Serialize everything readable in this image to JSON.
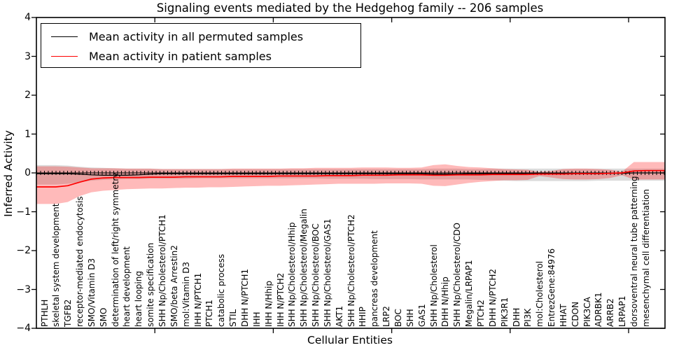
{
  "title": "Signaling events mediated by the Hedgehog family -- 206 samples",
  "chart_data": {
    "type": "line",
    "title": "Signaling events mediated by the Hedgehog family -- 206 samples",
    "xlabel": "Cellular Entities",
    "ylabel": "Inferred Activity",
    "ylim": [
      -4,
      4
    ],
    "ytick_labels": [
      "4",
      "3",
      "2",
      "1",
      "0",
      "−1",
      "−2",
      "−3",
      "−4"
    ],
    "ytick_values": [
      4,
      3,
      2,
      1,
      0,
      -1,
      -2,
      -3,
      -4
    ],
    "x_major_ticks": [
      10,
      20,
      30,
      40,
      50
    ],
    "grid": false,
    "legend_position": "upper left",
    "zero_reference_line": 0,
    "categories": [
      "PTHLH",
      "skeletal system development",
      "TGFB2",
      "receptor-mediated endocytosis",
      "SMO/Vitamin D3",
      "SMO",
      "determination of left/right symmetry",
      "heart development",
      "heart looping",
      "somite specification",
      "SHH Np/Cholesterol/PTCH1",
      "SMO/beta Arrestin2",
      "mol:Vitamin D3",
      "IHH N/PTCH1",
      "PTCH1",
      "catabolic process",
      "STIL",
      "DHH N/PTCH1",
      "IHH",
      "IHH N/Hhip",
      "IHH N/PTCH2",
      "SHH Np/Cholesterol/Hhip",
      "SHH Np/Cholesterol/Megalin",
      "SHH Np/Cholesterol/BOC",
      "SHH Np/Cholesterol/GAS1",
      "AKT1",
      "SHH Np/Cholesterol/PTCH2",
      "HHIP",
      "pancreas development",
      "LRP2",
      "BOC",
      "SHH",
      "GAS1",
      "SHH Np/Cholesterol",
      "DHH N/Hhip",
      "SHH Np/Cholesterol/CDO",
      "Megalin/LRPAP1",
      "PTCH2",
      "DHH N/PTCH2",
      "PIK3R1",
      "DHH",
      "PI3K",
      "mol:Cholesterol",
      "EntrezGene:84976",
      "HHAT",
      "CDON",
      "PIK3CA",
      "ADRBK1",
      "ARRB2",
      "LRPAP1",
      "dorsoventral neural tube patterning",
      "mesenchymal cell differentiation"
    ],
    "series": [
      {
        "name": "Mean activity in all permuted samples",
        "color": "#000000",
        "band_color": "#000000",
        "band_opacity": 0.14,
        "values": [
          -0.02,
          -0.02,
          -0.02,
          -0.03,
          -0.05,
          -0.06,
          -0.06,
          -0.06,
          -0.05,
          -0.03,
          -0.02,
          -0.02,
          -0.02,
          -0.02,
          -0.02,
          -0.02,
          -0.02,
          -0.02,
          -0.02,
          -0.02,
          -0.02,
          -0.02,
          -0.02,
          -0.02,
          -0.02,
          -0.02,
          -0.02,
          -0.02,
          -0.02,
          -0.02,
          -0.02,
          -0.02,
          -0.02,
          -0.03,
          -0.03,
          -0.03,
          -0.02,
          -0.02,
          -0.02,
          -0.02,
          -0.02,
          -0.01,
          -0.01,
          -0.01,
          -0.01,
          -0.01,
          -0.01,
          -0.01,
          -0.01,
          -0.01,
          0,
          0
        ],
        "band_upper": [
          0.2,
          0.2,
          0.19,
          0.16,
          0.14,
          0.13,
          0.12,
          0.11,
          0.11,
          0.11,
          0.1,
          0.1,
          0.1,
          0.1,
          0.1,
          0.1,
          0.1,
          0.1,
          0.1,
          0.1,
          0.1,
          0.1,
          0.1,
          0.1,
          0.1,
          0.1,
          0.1,
          0.1,
          0.1,
          0.1,
          0.1,
          0.1,
          0.1,
          0.11,
          0.11,
          0.11,
          0.1,
          0.1,
          0.11,
          0.11,
          0.11,
          0.11,
          0.11,
          0.11,
          0.11,
          0.11,
          0.11,
          0.11,
          0.11,
          0.11,
          0.11,
          0.11
        ],
        "band_lower": [
          -0.3,
          -0.3,
          -0.28,
          -0.24,
          -0.2,
          -0.18,
          -0.17,
          -0.16,
          -0.16,
          -0.15,
          -0.15,
          -0.15,
          -0.15,
          -0.14,
          -0.14,
          -0.14,
          -0.14,
          -0.14,
          -0.14,
          -0.14,
          -0.14,
          -0.14,
          -0.14,
          -0.14,
          -0.15,
          -0.15,
          -0.15,
          -0.15,
          -0.16,
          -0.16,
          -0.16,
          -0.16,
          -0.17,
          -0.17,
          -0.17,
          -0.17,
          -0.17,
          -0.18,
          -0.19,
          -0.2,
          -0.21,
          -0.21,
          -0.21,
          -0.21,
          -0.21,
          -0.21,
          -0.21,
          -0.2,
          -0.2,
          -0.2,
          -0.2,
          -0.2
        ]
      },
      {
        "name": "Mean activity in patient samples",
        "color": "#ff0000",
        "band_color": "#ff0000",
        "band_opacity": 0.27,
        "values": [
          -0.36,
          -0.36,
          -0.33,
          -0.24,
          -0.16,
          -0.13,
          -0.12,
          -0.12,
          -0.12,
          -0.11,
          -0.11,
          -0.11,
          -0.1,
          -0.1,
          -0.1,
          -0.1,
          -0.09,
          -0.09,
          -0.09,
          -0.09,
          -0.08,
          -0.08,
          -0.08,
          -0.08,
          -0.07,
          -0.07,
          -0.07,
          -0.06,
          -0.06,
          -0.06,
          -0.05,
          -0.05,
          -0.05,
          -0.06,
          -0.06,
          -0.05,
          -0.05,
          -0.05,
          -0.04,
          -0.04,
          -0.04,
          -0.04,
          -0.03,
          -0.03,
          -0.03,
          -0.02,
          -0.02,
          -0.02,
          -0.01,
          0.0,
          0.05,
          0.06
        ],
        "band_upper": [
          0.17,
          0.17,
          0.16,
          0.14,
          0.12,
          0.12,
          0.12,
          0.11,
          0.11,
          0.11,
          0.1,
          0.1,
          0.1,
          0.1,
          0.1,
          0.1,
          0.11,
          0.11,
          0.11,
          0.11,
          0.11,
          0.12,
          0.12,
          0.13,
          0.13,
          0.13,
          0.13,
          0.14,
          0.14,
          0.14,
          0.13,
          0.13,
          0.14,
          0.2,
          0.22,
          0.18,
          0.15,
          0.14,
          0.12,
          0.1,
          0.09,
          0.08,
          0.03,
          0.05,
          0.1,
          0.11,
          0.11,
          0.1,
          0.08,
          0.03,
          0.28,
          0.28
        ],
        "band_lower": [
          -0.8,
          -0.8,
          -0.75,
          -0.6,
          -0.5,
          -0.46,
          -0.44,
          -0.42,
          -0.41,
          -0.4,
          -0.4,
          -0.39,
          -0.38,
          -0.38,
          -0.37,
          -0.37,
          -0.36,
          -0.35,
          -0.34,
          -0.33,
          -0.33,
          -0.32,
          -0.31,
          -0.3,
          -0.29,
          -0.28,
          -0.28,
          -0.28,
          -0.28,
          -0.27,
          -0.27,
          -0.27,
          -0.28,
          -0.33,
          -0.34,
          -0.3,
          -0.26,
          -0.23,
          -0.21,
          -0.19,
          -0.19,
          -0.18,
          -0.08,
          -0.12,
          -0.16,
          -0.17,
          -0.17,
          -0.16,
          -0.13,
          -0.06,
          -0.17,
          -0.17
        ]
      }
    ]
  }
}
